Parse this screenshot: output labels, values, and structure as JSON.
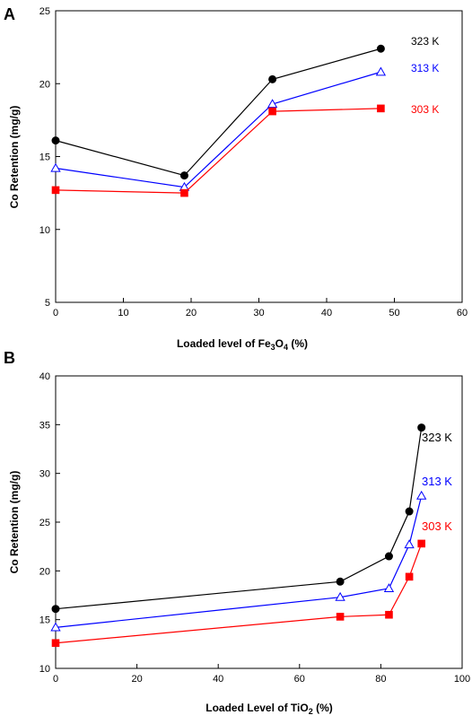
{
  "chart_data": [
    {
      "panel": "A",
      "type": "line",
      "xlabel_main": "Loaded level of Fe",
      "xlabel_sub1": "3",
      "xlabel_mid": "O",
      "xlabel_sub2": "4",
      "xlabel_tail": " (%)",
      "ylabel": "Co Retention (mg/g)",
      "xlim": [
        0,
        60
      ],
      "ylim": [
        5,
        25
      ],
      "xticks": [
        0,
        10,
        20,
        30,
        40,
        50,
        60
      ],
      "yticks": [
        5,
        10,
        15,
        20,
        25
      ],
      "grid": false,
      "series": [
        {
          "name": "323 K",
          "color": "#000000",
          "marker": "circle",
          "x": [
            0,
            19,
            32,
            48
          ],
          "y": [
            16.1,
            13.7,
            20.3,
            22.4
          ]
        },
        {
          "name": "313 K",
          "color": "#0000ff",
          "marker": "triangle-open",
          "x": [
            0,
            19,
            32,
            48
          ],
          "y": [
            14.2,
            12.9,
            18.6,
            20.8
          ]
        },
        {
          "name": "303 K",
          "color": "#ff0000",
          "marker": "square",
          "x": [
            0,
            19,
            32,
            48
          ],
          "y": [
            12.7,
            12.5,
            18.1,
            18.3
          ]
        }
      ]
    },
    {
      "panel": "B",
      "type": "line",
      "xlabel_main": "Loaded Level of TiO",
      "xlabel_sub1": "2",
      "xlabel_tail": " (%)",
      "ylabel": "Co Retention (mg/g)",
      "xlim": [
        0,
        100
      ],
      "ylim": [
        10,
        40
      ],
      "xticks": [
        0,
        20,
        40,
        60,
        80,
        100
      ],
      "yticks": [
        10,
        15,
        20,
        25,
        30,
        35,
        40
      ],
      "grid": false,
      "series": [
        {
          "name": "323 K",
          "color": "#000000",
          "marker": "circle",
          "x": [
            0,
            70,
            82,
            87,
            90
          ],
          "y": [
            16.1,
            18.9,
            21.5,
            26.1,
            34.7
          ]
        },
        {
          "name": "313 K",
          "color": "#0000ff",
          "marker": "triangle-open",
          "x": [
            0,
            70,
            82,
            87,
            90
          ],
          "y": [
            14.2,
            17.3,
            18.2,
            22.7,
            27.7
          ]
        },
        {
          "name": "303 K",
          "color": "#ff0000",
          "marker": "square",
          "x": [
            0,
            70,
            82,
            87,
            90
          ],
          "y": [
            12.6,
            15.3,
            15.5,
            19.4,
            22.8
          ]
        }
      ]
    }
  ]
}
